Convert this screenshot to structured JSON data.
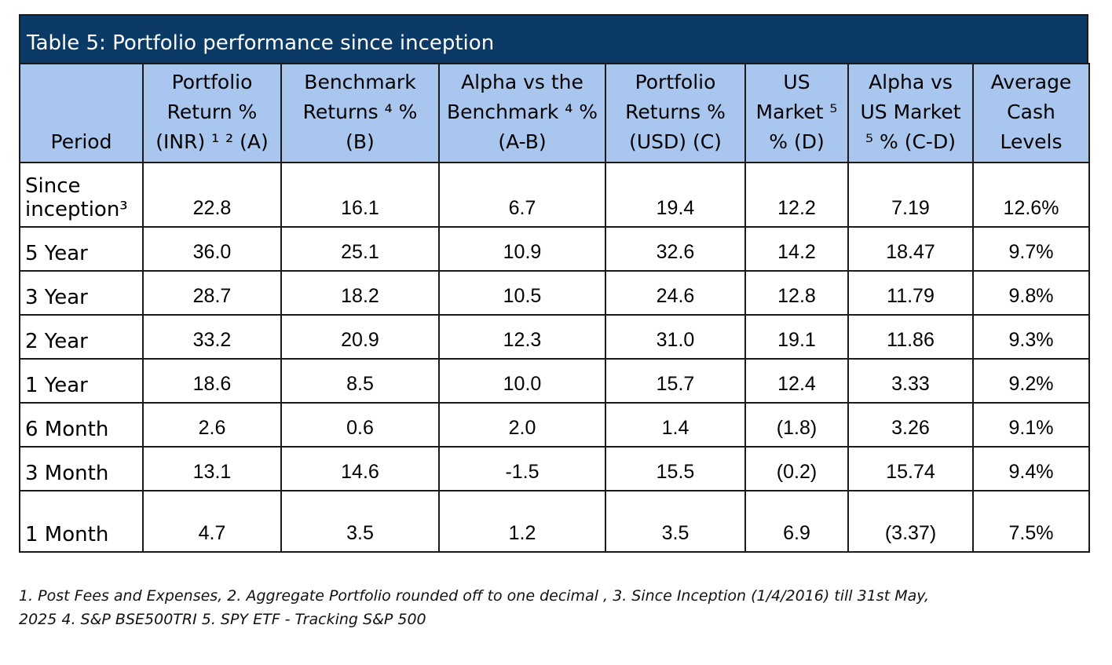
{
  "table": {
    "title": "Table 5: Portfolio performance since inception",
    "headers": [
      {
        "lines": [
          "Period"
        ]
      },
      {
        "lines": [
          "Portfolio",
          "Return %",
          "(INR) ¹ ² (A)"
        ]
      },
      {
        "lines": [
          "Benchmark",
          "Returns ⁴ %",
          "(B)"
        ]
      },
      {
        "lines": [
          "Alpha vs the",
          "Benchmark ⁴ %",
          "(A-B)"
        ]
      },
      {
        "lines": [
          "Portfolio",
          "Returns %",
          "(USD) (C)"
        ]
      },
      {
        "lines": [
          "US",
          "Market ⁵",
          "% (D)"
        ]
      },
      {
        "lines": [
          "Alpha vs",
          "US Market",
          "⁵ % (C-D)"
        ]
      },
      {
        "lines": [
          "Average",
          "Cash",
          "Levels"
        ]
      }
    ],
    "rows": [
      {
        "period": [
          "Since",
          "inception³"
        ],
        "values": [
          "22.8",
          "16.1",
          "6.7",
          "19.4",
          "12.2",
          "7.19",
          "12.6%"
        ]
      },
      {
        "period": [
          "5 Year"
        ],
        "values": [
          "36.0",
          "25.1",
          "10.9",
          "32.6",
          "14.2",
          "18.47",
          "9.7%"
        ]
      },
      {
        "period": [
          "3 Year"
        ],
        "values": [
          "28.7",
          "18.2",
          "10.5",
          "24.6",
          "12.8",
          "11.79",
          "9.8%"
        ]
      },
      {
        "period": [
          "2 Year"
        ],
        "values": [
          "33.2",
          "20.9",
          "12.3",
          "31.0",
          "19.1",
          "11.86",
          "9.3%"
        ]
      },
      {
        "period": [
          "1 Year"
        ],
        "values": [
          "18.6",
          "8.5",
          "10.0",
          "15.7",
          "12.4",
          "3.33",
          "9.2%"
        ]
      },
      {
        "period": [
          "6 Month"
        ],
        "values": [
          "2.6",
          "0.6",
          "2.0",
          "1.4",
          "(1.8)",
          "3.26",
          "9.1%"
        ]
      },
      {
        "period": [
          "3 Month"
        ],
        "values": [
          "13.1",
          "14.6",
          "-1.5",
          "15.5",
          "(0.2)",
          "15.74",
          "9.4%"
        ]
      },
      {
        "period": [
          "1 Month"
        ],
        "values": [
          "4.7",
          "3.5",
          "1.2",
          "3.5",
          "6.9",
          "(3.37)",
          "7.5%"
        ]
      }
    ]
  },
  "footnote": [
    "1. Post Fees and Expenses, 2. Aggregate Portfolio rounded off to one decimal , 3. Since Inception (1/4/2016) till 31st May,",
    "2025  4. S&P BSE500TRI 5. SPY ETF - Tracking S&P 500"
  ],
  "colors": {
    "title_bg": "#0b3a66",
    "header_bg": "#a9c6ef",
    "border": "#1a1a1a"
  }
}
